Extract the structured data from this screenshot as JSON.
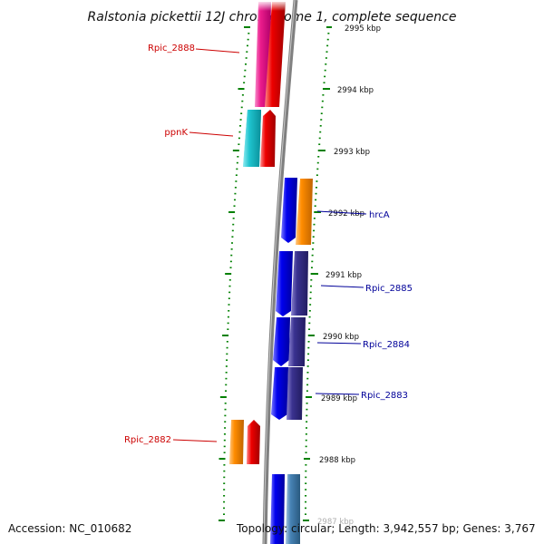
{
  "title": "Ralstonia pickettii 12J chromosome 1, complete sequence",
  "accession": "Accession: NC_010682",
  "summary": "Topology: circular; Length: 3,942,557 bp; Genes: 3,767",
  "colors": {
    "backbone": "#808080",
    "tick": "#008000",
    "label_red": "#cc0000",
    "label_blue": "#000099",
    "pink": "#ec1c8c",
    "cyan": "#1fc4cf",
    "red": "#ee0000",
    "blue": "#0000ee",
    "orange": "#ff8c00",
    "navy": "#3a3290",
    "steel": "#4682b4"
  },
  "kbp_ticks": [
    {
      "label": "2995 kbp",
      "value": 2995
    },
    {
      "label": "2994 kbp",
      "value": 2994
    },
    {
      "label": "2993 kbp",
      "value": 2993
    },
    {
      "label": "2992 kbp",
      "value": 2992
    },
    {
      "label": "2991 kbp",
      "value": 2991
    },
    {
      "label": "2990 kbp",
      "value": 2990
    },
    {
      "label": "2989 kbp",
      "value": 2989
    },
    {
      "label": "2988 kbp",
      "value": 2988
    },
    {
      "label": "2987 kbp",
      "value": 2987
    }
  ],
  "gene_labels": [
    {
      "text": "Rpic_2888",
      "side": "left",
      "color_key": "label_red"
    },
    {
      "text": "ppnK",
      "side": "left",
      "color_key": "label_red"
    },
    {
      "text": "hrcA",
      "side": "right",
      "color_key": "label_blue"
    },
    {
      "text": "Rpic_2885",
      "side": "right",
      "color_key": "label_blue"
    },
    {
      "text": "Rpic_2884",
      "side": "right",
      "color_key": "label_blue"
    },
    {
      "text": "Rpic_2883",
      "side": "right",
      "color_key": "label_blue"
    },
    {
      "text": "Rpic_2882",
      "side": "left",
      "color_key": "label_red"
    }
  ]
}
